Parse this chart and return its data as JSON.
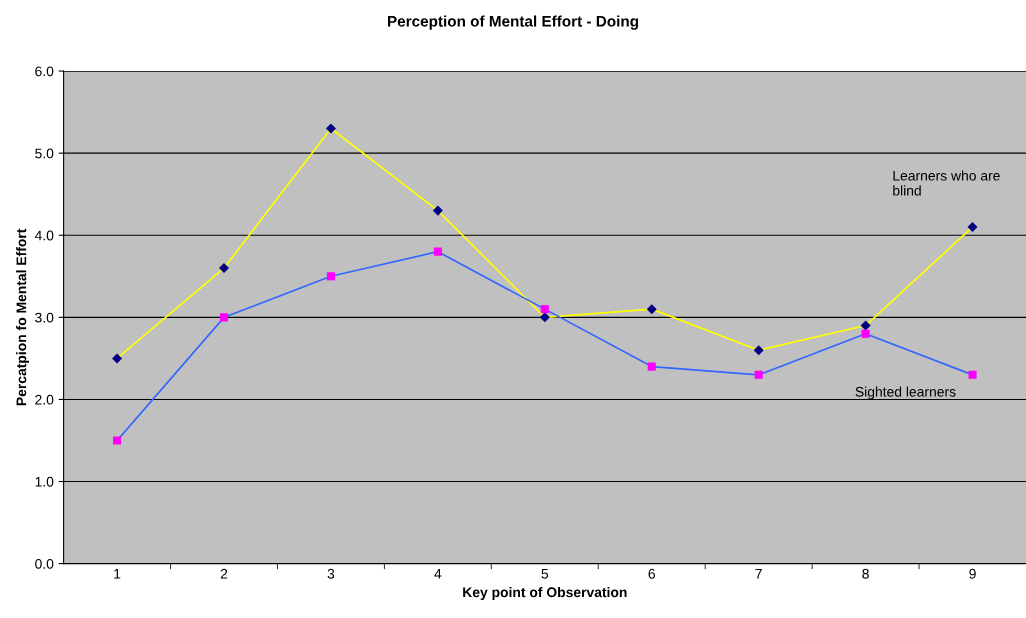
{
  "chart_data": {
    "type": "line",
    "title": "Perception of Mental Effort - Doing",
    "xlabel": "Key point of Observation",
    "ylabel": "Percatpion fo Mental Effort",
    "categories": [
      "1",
      "2",
      "3",
      "4",
      "5",
      "6",
      "7",
      "8",
      "9"
    ],
    "series": [
      {
        "name": "Learners who are blind",
        "color": "#ffff00",
        "marker": "diamond",
        "colors": [
          "#000080",
          "#000080",
          "#000080",
          "#000080",
          "#000080",
          "#000080",
          "#000080",
          "#000080",
          "#000080"
        ],
        "values": [
          2.5,
          3.6,
          5.3,
          4.3,
          3.0,
          3.1,
          2.6,
          2.9,
          4.1
        ]
      },
      {
        "name": "Sighted learners",
        "color": "#3366ff",
        "marker": "square",
        "colors": [
          "#ff00ff",
          "#ff00ff",
          "#ff00ff",
          "#ff00ff",
          "#ff00ff",
          "#ff00ff",
          "#ff00ff",
          "#ff00ff",
          "#ff00ff"
        ],
        "values": [
          1.5,
          3.0,
          3.5,
          3.8,
          3.1,
          2.4,
          2.3,
          2.8,
          2.3
        ]
      }
    ],
    "ylim": [
      0,
      6
    ],
    "yticks": [
      {
        "value": 0,
        "label": "0.0"
      },
      {
        "value": 1,
        "label": "1.0"
      },
      {
        "value": 2,
        "label": "2.0"
      },
      {
        "value": 3,
        "label": "3.0"
      },
      {
        "value": 4,
        "label": "4.0"
      },
      {
        "value": 5,
        "label": "5.0"
      },
      {
        "value": 6,
        "label": "6.0"
      }
    ],
    "grid": "y",
    "legend": false,
    "line_style": "solid"
  }
}
